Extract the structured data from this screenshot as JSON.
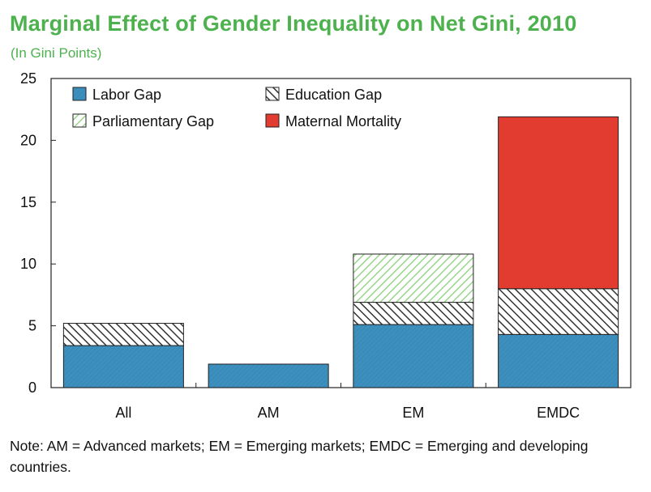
{
  "title": "Marginal Effect of Gender Inequality on Net Gini, 2010",
  "subtitle": "(In Gini Points)",
  "note": "Note: AM = Advanced markets; EM = Emerging markets; EMDC = Emerging and developing countries.",
  "colors": {
    "title": "#4db24e",
    "labor": "#3d8fbd",
    "education": "#333333",
    "parliamentary": "#8ad07a",
    "maternal": "#e23b30"
  },
  "chart_data": {
    "type": "bar",
    "stacked": true,
    "title": "Marginal Effect of Gender Inequality on Net Gini, 2010",
    "subtitle": "(In Gini Points)",
    "xlabel": "",
    "ylabel": "",
    "ylim": [
      0,
      25
    ],
    "yticks": [
      0,
      5,
      10,
      15,
      20,
      25
    ],
    "grid": false,
    "legend_position": "top-left",
    "categories": [
      "All",
      "AM",
      "EM",
      "EMDC"
    ],
    "series": [
      {
        "name": "Labor Gap",
        "pattern": "solid",
        "color": "#3d8fbd",
        "values": [
          3.4,
          1.9,
          5.1,
          4.3
        ]
      },
      {
        "name": "Education Gap",
        "pattern": "hatch-dark",
        "color": "#333333",
        "values": [
          1.8,
          0,
          1.8,
          3.7
        ]
      },
      {
        "name": "Parliamentary Gap",
        "pattern": "hatch-green",
        "color": "#8ad07a",
        "values": [
          0,
          0,
          3.9,
          0
        ]
      },
      {
        "name": "Maternal Mortality",
        "pattern": "solid",
        "color": "#e23b30",
        "values": [
          0,
          0,
          0,
          13.9
        ]
      }
    ]
  }
}
